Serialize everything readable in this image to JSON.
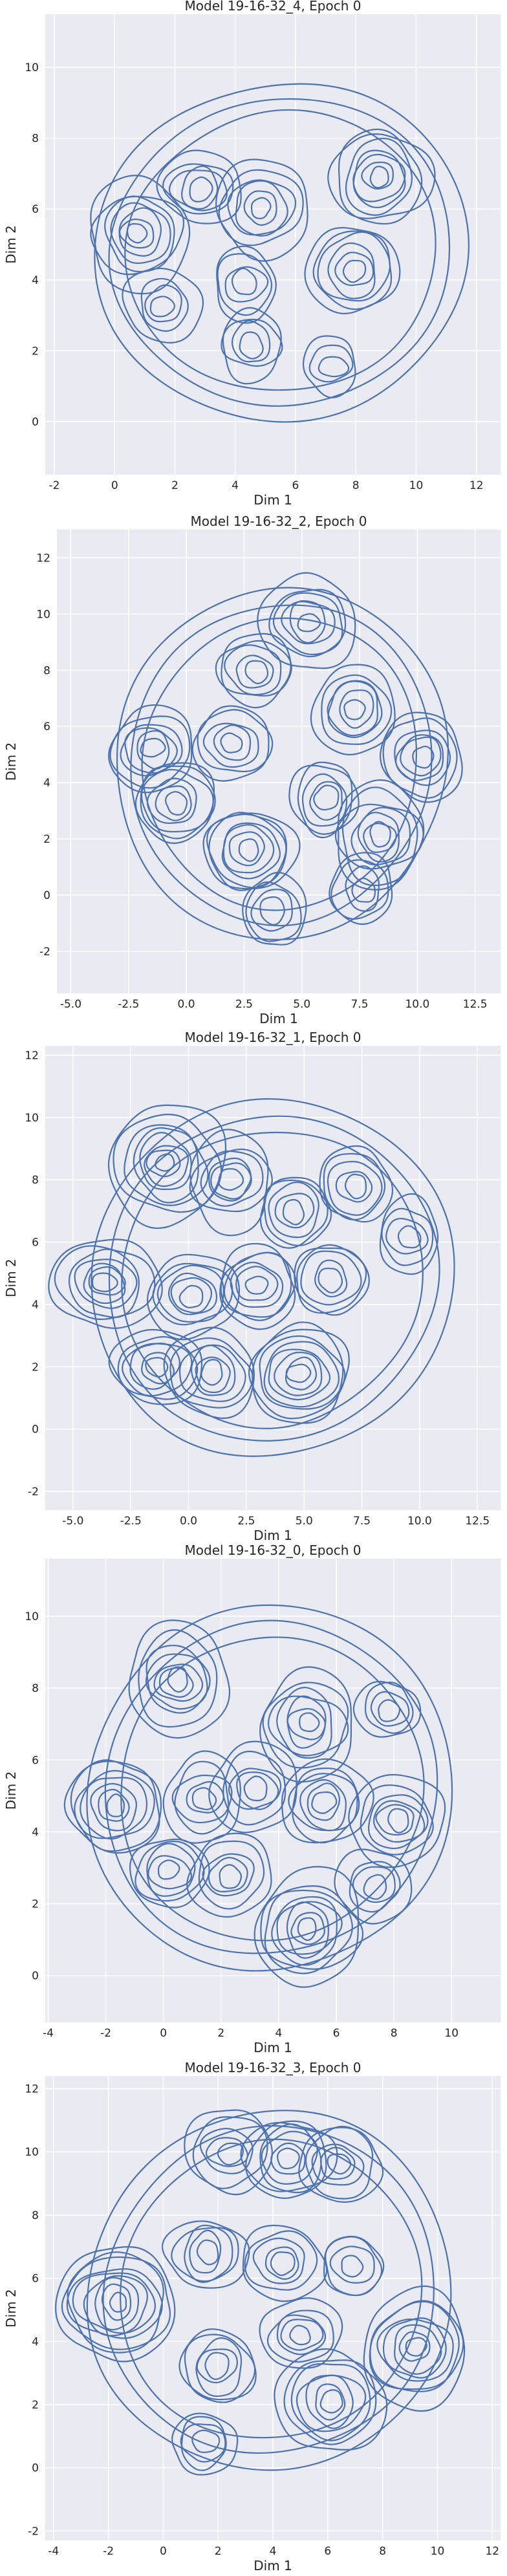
{
  "chart_data": [
    {
      "type": "contour",
      "title": "Model 19-16-32_4, Epoch 0",
      "xlabel": "Dim 1",
      "ylabel": "Dim 2",
      "xlim": [
        -2.3,
        12.8
      ],
      "ylim": [
        -1.5,
        11.5
      ],
      "xticks": [
        -2,
        0,
        2,
        4,
        6,
        8,
        10,
        12
      ],
      "yticks": [
        0,
        2,
        4,
        6,
        8,
        10
      ],
      "grid": true,
      "color": "#4c72b0",
      "outer_extent": {
        "x": [
          -0.6,
          11.7
        ],
        "y": [
          0.0,
          9.6
        ]
      },
      "density_peaks": [
        {
          "x": 0.8,
          "y": 5.3,
          "level": 7
        },
        {
          "x": 2.8,
          "y": 6.6,
          "level": 5
        },
        {
          "x": 4.9,
          "y": 6.0,
          "level": 6
        },
        {
          "x": 8.8,
          "y": 6.9,
          "level": 7
        },
        {
          "x": 7.9,
          "y": 4.3,
          "level": 6
        },
        {
          "x": 4.3,
          "y": 3.9,
          "level": 4
        },
        {
          "x": 1.6,
          "y": 3.3,
          "level": 4
        },
        {
          "x": 4.5,
          "y": 2.2,
          "level": 4
        },
        {
          "x": 7.2,
          "y": 1.6,
          "level": 3
        }
      ]
    },
    {
      "type": "contour",
      "title": "Model 19-16-32_2, Epoch 0",
      "xlabel": "Dim 1",
      "ylabel": "Dim 2",
      "xlim": [
        -5.6,
        13.6
      ],
      "ylim": [
        -3.5,
        13.0
      ],
      "xticks": [
        -5.0,
        -2.5,
        0.0,
        2.5,
        5.0,
        7.5,
        10.0,
        12.5
      ],
      "yticks": [
        -2,
        0,
        2,
        4,
        6,
        8,
        10,
        12
      ],
      "grid": true,
      "color": "#4c72b0",
      "outer_extent": {
        "x": [
          -3.0,
          11.2
        ],
        "y": [
          -1.6,
          11.0
        ]
      },
      "density_peaks": [
        {
          "x": 5.3,
          "y": 9.7,
          "level": 6
        },
        {
          "x": 3.0,
          "y": 8.0,
          "level": 5
        },
        {
          "x": -1.5,
          "y": 5.2,
          "level": 6
        },
        {
          "x": 2.0,
          "y": 5.4,
          "level": 5
        },
        {
          "x": 7.3,
          "y": 6.6,
          "level": 6
        },
        {
          "x": 10.2,
          "y": 4.9,
          "level": 6
        },
        {
          "x": -0.5,
          "y": 3.3,
          "level": 6
        },
        {
          "x": 2.7,
          "y": 1.6,
          "level": 7
        },
        {
          "x": 6.0,
          "y": 3.4,
          "level": 5
        },
        {
          "x": 8.4,
          "y": 2.1,
          "level": 7
        },
        {
          "x": 3.8,
          "y": -0.6,
          "level": 4
        },
        {
          "x": 7.6,
          "y": 0.2,
          "level": 4
        }
      ]
    },
    {
      "type": "contour",
      "title": "Model 19-16-32_1, Epoch 0",
      "xlabel": "Dim 1",
      "ylabel": "Dim 2",
      "xlim": [
        -6.2,
        13.5
      ],
      "ylim": [
        -2.6,
        12.3
      ],
      "xticks": [
        -5.0,
        -2.5,
        0.0,
        2.5,
        5.0,
        7.5,
        10.0,
        12.5
      ],
      "yticks": [
        -2,
        0,
        2,
        4,
        6,
        8,
        10,
        12
      ],
      "grid": true,
      "color": "#4c72b0",
      "outer_extent": {
        "x": [
          -4.2,
          11.4
        ],
        "y": [
          -0.9,
          10.6
        ]
      },
      "density_peaks": [
        {
          "x": -1.0,
          "y": 8.5,
          "level": 8
        },
        {
          "x": 1.8,
          "y": 8.0,
          "level": 6
        },
        {
          "x": 4.6,
          "y": 7.0,
          "level": 5
        },
        {
          "x": 7.2,
          "y": 7.8,
          "level": 5
        },
        {
          "x": 9.5,
          "y": 6.2,
          "level": 4
        },
        {
          "x": -3.6,
          "y": 4.7,
          "level": 7
        },
        {
          "x": 0.2,
          "y": 4.3,
          "level": 6
        },
        {
          "x": 3.0,
          "y": 4.6,
          "level": 6
        },
        {
          "x": 6.2,
          "y": 4.8,
          "level": 5
        },
        {
          "x": -1.4,
          "y": 2.0,
          "level": 6
        },
        {
          "x": 1.0,
          "y": 1.8,
          "level": 6
        },
        {
          "x": 4.8,
          "y": 1.8,
          "level": 8
        }
      ]
    },
    {
      "type": "contour",
      "title": "Model 19-16-32_0, Epoch 0",
      "xlabel": "Dim 1",
      "ylabel": "Dim 2",
      "xlim": [
        -4.1,
        11.7
      ],
      "ylim": [
        -1.3,
        11.6
      ],
      "xticks": [
        -4,
        -2,
        0,
        2,
        4,
        6,
        8,
        10
      ],
      "yticks": [
        0,
        2,
        4,
        6,
        8,
        10
      ],
      "grid": true,
      "color": "#4c72b0",
      "outer_extent": {
        "x": [
          -2.6,
          10.0
        ],
        "y": [
          0.1,
          10.3
        ]
      },
      "density_peaks": [
        {
          "x": 0.5,
          "y": 8.2,
          "level": 7
        },
        {
          "x": 5.0,
          "y": 7.0,
          "level": 7
        },
        {
          "x": 7.8,
          "y": 7.4,
          "level": 4
        },
        {
          "x": -1.7,
          "y": 4.7,
          "level": 7
        },
        {
          "x": 1.4,
          "y": 4.9,
          "level": 5
        },
        {
          "x": 3.2,
          "y": 5.2,
          "level": 5
        },
        {
          "x": 5.6,
          "y": 4.8,
          "level": 6
        },
        {
          "x": 8.1,
          "y": 4.3,
          "level": 6
        },
        {
          "x": 0.2,
          "y": 2.9,
          "level": 5
        },
        {
          "x": 2.3,
          "y": 2.8,
          "level": 5
        },
        {
          "x": 5.0,
          "y": 1.3,
          "level": 8
        },
        {
          "x": 7.3,
          "y": 2.5,
          "level": 4
        }
      ]
    },
    {
      "type": "contour",
      "title": "Model 19-16-32_3, Epoch 0",
      "xlabel": "Dim 1",
      "ylabel": "Dim 2",
      "xlim": [
        -4.3,
        12.3
      ],
      "ylim": [
        -2.3,
        12.4
      ],
      "xticks": [
        -4,
        -2,
        0,
        2,
        4,
        6,
        8,
        10,
        12
      ],
      "yticks": [
        -2,
        0,
        2,
        4,
        6,
        8,
        10,
        12
      ],
      "grid": true,
      "color": "#4c72b0",
      "outer_extent": {
        "x": [
          -2.7,
          10.5
        ],
        "y": [
          -0.1,
          11.3
        ]
      },
      "density_peaks": [
        {
          "x": 2.4,
          "y": 10.0,
          "level": 5
        },
        {
          "x": 4.6,
          "y": 9.8,
          "level": 6
        },
        {
          "x": 6.4,
          "y": 9.6,
          "level": 5
        },
        {
          "x": -1.7,
          "y": 5.2,
          "level": 9
        },
        {
          "x": 1.6,
          "y": 6.8,
          "level": 5
        },
        {
          "x": 4.3,
          "y": 6.5,
          "level": 5
        },
        {
          "x": 6.9,
          "y": 6.4,
          "level": 4
        },
        {
          "x": 9.2,
          "y": 3.8,
          "level": 8
        },
        {
          "x": 5.0,
          "y": 4.2,
          "level": 5
        },
        {
          "x": 2.0,
          "y": 3.2,
          "level": 5
        },
        {
          "x": 6.1,
          "y": 2.1,
          "level": 7
        },
        {
          "x": 1.5,
          "y": 0.8,
          "level": 4
        }
      ]
    }
  ]
}
